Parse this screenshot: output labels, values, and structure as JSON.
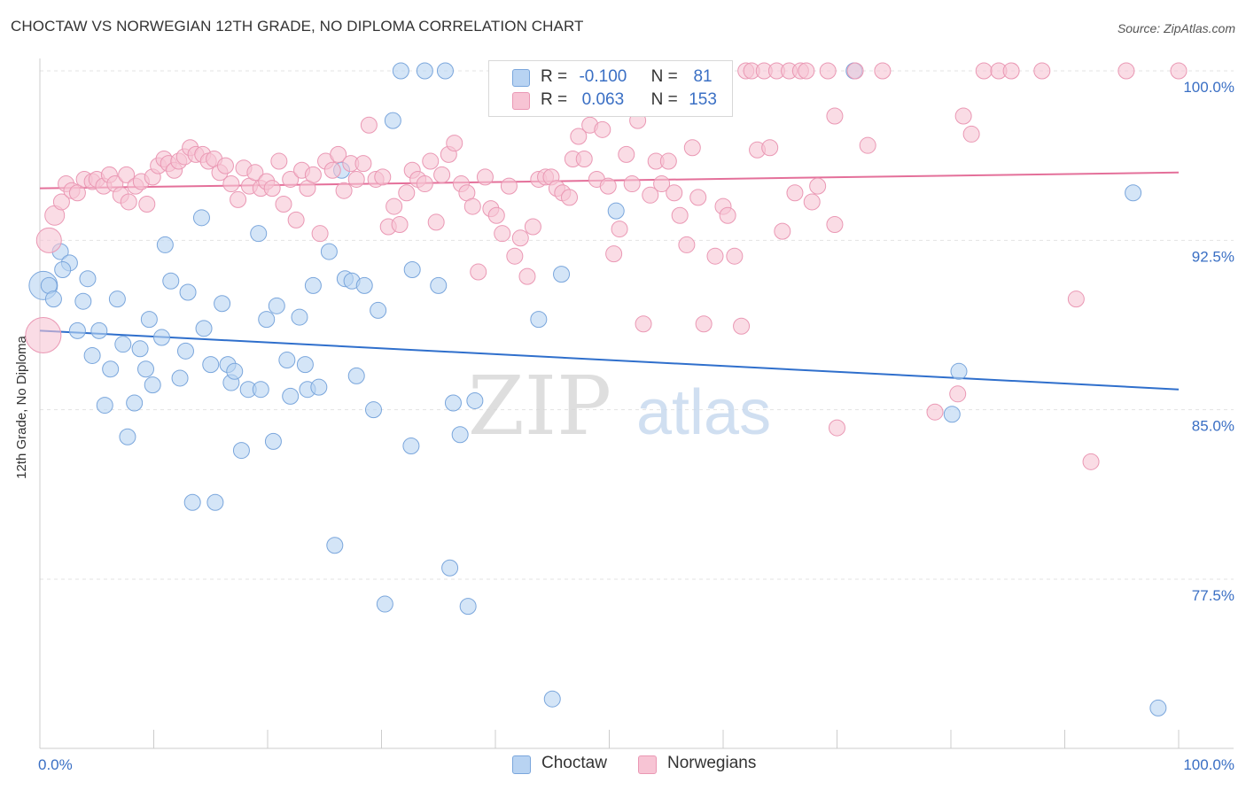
{
  "title": "CHOCTAW VS NORWEGIAN 12TH GRADE, NO DIPLOMA CORRELATION CHART",
  "source": "Source: ZipAtlas.com",
  "watermark": {
    "zip": "ZIP",
    "atlas": "atlas"
  },
  "legend": {
    "rows": [
      {
        "r_label": "R =",
        "r_value": "-0.100",
        "n_label": "N =",
        "n_value": "81"
      },
      {
        "r_label": "R =",
        "r_value": "0.063",
        "n_label": "N =",
        "n_value": "153"
      }
    ]
  },
  "colors": {
    "choctaw_fill": "#b8d3f2",
    "choctaw_stroke": "#7aa6dc",
    "choctaw_line": "#2f6fcc",
    "norwegian_fill": "#f7c4d4",
    "norwegian_stroke": "#ea98b4",
    "norwegian_line": "#e4709a",
    "axis_text": "#3a6fc4",
    "grid": "#e3e3e3"
  },
  "chart_data": {
    "type": "scatter",
    "title": "CHOCTAW VS NORWEGIAN 12TH GRADE, NO DIPLOMA CORRELATION CHART",
    "xlabel": "",
    "ylabel": "12th Grade, No Diploma",
    "xlim": [
      0,
      100
    ],
    "ylim": [
      71.5,
      101
    ],
    "x_tick_labels": [
      "0.0%",
      "100.0%"
    ],
    "y_ticks": [
      77.5,
      85.0,
      92.5,
      100.0
    ],
    "y_tick_labels": [
      "77.5%",
      "85.0%",
      "92.5%",
      "100.0%"
    ],
    "grid": true,
    "legend_position": "top-center",
    "series": [
      {
        "name": "Choctaw",
        "trend": {
          "x": [
            0,
            100
          ],
          "y": [
            88.5,
            85.9
          ]
        },
        "points": [
          [
            0.3,
            90.5,
            16
          ],
          [
            0.8,
            90.5,
            9
          ],
          [
            1.2,
            89.9,
            9
          ],
          [
            1.8,
            92.0,
            9
          ],
          [
            2.6,
            91.5,
            9
          ],
          [
            2.0,
            91.2,
            9
          ],
          [
            3.3,
            88.5,
            9
          ],
          [
            3.8,
            89.8,
            9
          ],
          [
            4.2,
            90.8,
            9
          ],
          [
            4.6,
            87.4,
            9
          ],
          [
            5.2,
            88.5,
            9
          ],
          [
            6.2,
            86.8,
            9
          ],
          [
            5.7,
            85.2,
            9
          ],
          [
            6.8,
            89.9,
            9
          ],
          [
            7.3,
            87.9,
            9
          ],
          [
            7.7,
            83.8,
            9
          ],
          [
            8.3,
            85.3,
            9
          ],
          [
            8.8,
            87.7,
            9
          ],
          [
            9.3,
            86.8,
            9
          ],
          [
            9.6,
            89.0,
            9
          ],
          [
            9.9,
            86.1,
            9
          ],
          [
            10.7,
            88.2,
            9
          ],
          [
            11.0,
            92.3,
            9
          ],
          [
            11.5,
            90.7,
            9
          ],
          [
            12.3,
            86.4,
            9
          ],
          [
            12.8,
            87.6,
            9
          ],
          [
            13.0,
            90.2,
            9
          ],
          [
            13.4,
            80.9,
            9
          ],
          [
            14.2,
            93.5,
            9
          ],
          [
            14.4,
            88.6,
            9
          ],
          [
            15.0,
            87.0,
            9
          ],
          [
            15.4,
            80.9,
            9
          ],
          [
            16.0,
            89.7,
            9
          ],
          [
            16.5,
            87.0,
            9
          ],
          [
            16.8,
            86.2,
            9
          ],
          [
            17.1,
            86.7,
            9
          ],
          [
            17.7,
            83.2,
            9
          ],
          [
            18.3,
            85.9,
            9
          ],
          [
            19.2,
            92.8,
            9
          ],
          [
            19.4,
            85.9,
            9
          ],
          [
            19.9,
            89.0,
            9
          ],
          [
            20.5,
            83.6,
            9
          ],
          [
            20.8,
            89.6,
            9
          ],
          [
            21.7,
            87.2,
            9
          ],
          [
            22.0,
            85.6,
            9
          ],
          [
            22.8,
            89.1,
            9
          ],
          [
            23.3,
            87.0,
            9
          ],
          [
            23.5,
            85.9,
            9
          ],
          [
            24.0,
            90.5,
            9
          ],
          [
            24.5,
            86.0,
            9
          ],
          [
            25.4,
            92.0,
            9
          ],
          [
            25.9,
            79.0,
            9
          ],
          [
            26.5,
            95.6,
            9
          ],
          [
            26.8,
            90.8,
            9
          ],
          [
            27.4,
            90.7,
            9
          ],
          [
            27.8,
            86.5,
            9
          ],
          [
            28.5,
            90.5,
            9
          ],
          [
            29.3,
            85.0,
            9
          ],
          [
            29.7,
            89.4,
            9
          ],
          [
            30.3,
            76.4,
            9
          ],
          [
            31.0,
            97.8,
            9
          ],
          [
            31.7,
            100.0,
            9
          ],
          [
            32.6,
            83.4,
            9
          ],
          [
            32.7,
            91.2,
            9
          ],
          [
            33.8,
            100.0,
            9
          ],
          [
            35.6,
            100.0,
            9
          ],
          [
            35.0,
            90.5,
            9
          ],
          [
            36.0,
            78.0,
            9
          ],
          [
            36.3,
            85.3,
            9
          ],
          [
            36.9,
            83.9,
            9
          ],
          [
            37.6,
            76.3,
            9
          ],
          [
            38.2,
            85.4,
            9
          ],
          [
            43.8,
            89.0,
            9
          ],
          [
            45.0,
            72.2,
            9
          ],
          [
            45.8,
            91.0,
            9
          ],
          [
            50.6,
            93.8,
            9
          ],
          [
            71.5,
            100.0,
            9
          ],
          [
            80.1,
            84.8,
            9
          ],
          [
            80.7,
            86.7,
            9
          ],
          [
            96.0,
            94.6,
            9
          ],
          [
            98.2,
            71.8,
            9
          ]
        ]
      },
      {
        "name": "Norwegians",
        "trend": {
          "x": [
            0,
            100
          ],
          "y": [
            94.8,
            95.5
          ]
        },
        "points": [
          [
            0.3,
            88.3,
            20
          ],
          [
            0.8,
            92.5,
            14
          ],
          [
            1.3,
            93.6,
            11
          ],
          [
            1.9,
            94.2,
            9
          ],
          [
            2.3,
            95.0,
            9
          ],
          [
            2.8,
            94.7,
            9
          ],
          [
            3.3,
            94.6,
            9
          ],
          [
            3.9,
            95.2,
            9
          ],
          [
            4.6,
            95.1,
            9
          ],
          [
            5.0,
            95.2,
            9
          ],
          [
            5.6,
            94.9,
            9
          ],
          [
            6.1,
            95.4,
            9
          ],
          [
            6.6,
            95.0,
            9
          ],
          [
            7.1,
            94.5,
            9
          ],
          [
            7.6,
            95.4,
            9
          ],
          [
            7.8,
            94.2,
            9
          ],
          [
            8.4,
            94.9,
            9
          ],
          [
            8.9,
            95.1,
            9
          ],
          [
            9.4,
            94.1,
            9
          ],
          [
            9.9,
            95.3,
            9
          ],
          [
            10.4,
            95.8,
            9
          ],
          [
            10.9,
            96.1,
            9
          ],
          [
            11.3,
            95.9,
            9
          ],
          [
            11.8,
            95.6,
            9
          ],
          [
            12.2,
            96.0,
            9
          ],
          [
            12.7,
            96.2,
            9
          ],
          [
            13.2,
            96.6,
            9
          ],
          [
            13.7,
            96.3,
            9
          ],
          [
            14.3,
            96.3,
            9
          ],
          [
            14.8,
            96.0,
            9
          ],
          [
            15.3,
            96.1,
            9
          ],
          [
            15.8,
            95.5,
            9
          ],
          [
            16.3,
            95.8,
            9
          ],
          [
            16.8,
            95.0,
            9
          ],
          [
            17.4,
            94.3,
            9
          ],
          [
            17.9,
            95.7,
            9
          ],
          [
            18.4,
            94.9,
            9
          ],
          [
            18.9,
            95.5,
            9
          ],
          [
            19.4,
            94.8,
            9
          ],
          [
            19.9,
            95.1,
            9
          ],
          [
            20.4,
            94.8,
            9
          ],
          [
            21.0,
            96.0,
            9
          ],
          [
            21.4,
            94.1,
            9
          ],
          [
            22.0,
            95.2,
            9
          ],
          [
            22.5,
            93.4,
            9
          ],
          [
            23.0,
            95.6,
            9
          ],
          [
            23.5,
            94.8,
            9
          ],
          [
            24.0,
            95.4,
            9
          ],
          [
            24.6,
            92.8,
            9
          ],
          [
            25.1,
            96.0,
            9
          ],
          [
            25.7,
            95.6,
            9
          ],
          [
            26.2,
            96.3,
            9
          ],
          [
            26.7,
            94.7,
            9
          ],
          [
            27.3,
            95.9,
            9
          ],
          [
            27.8,
            95.2,
            9
          ],
          [
            28.4,
            95.9,
            9
          ],
          [
            28.9,
            97.6,
            9
          ],
          [
            29.5,
            95.2,
            9
          ],
          [
            30.1,
            95.3,
            9
          ],
          [
            30.6,
            93.1,
            9
          ],
          [
            31.1,
            94.0,
            9
          ],
          [
            31.6,
            93.2,
            9
          ],
          [
            32.2,
            94.6,
            9
          ],
          [
            32.7,
            95.6,
            9
          ],
          [
            33.2,
            95.2,
            9
          ],
          [
            33.8,
            95.0,
            9
          ],
          [
            34.3,
            96.0,
            9
          ],
          [
            34.8,
            93.3,
            9
          ],
          [
            35.3,
            95.4,
            9
          ],
          [
            35.9,
            96.3,
            9
          ],
          [
            36.4,
            96.8,
            9
          ],
          [
            37.0,
            95.0,
            9
          ],
          [
            37.5,
            94.6,
            9
          ],
          [
            38.0,
            94.0,
            9
          ],
          [
            38.5,
            91.1,
            9
          ],
          [
            39.1,
            95.3,
            9
          ],
          [
            39.6,
            93.9,
            9
          ],
          [
            40.1,
            93.6,
            9
          ],
          [
            40.6,
            92.8,
            9
          ],
          [
            41.2,
            94.9,
            9
          ],
          [
            41.7,
            91.8,
            9
          ],
          [
            42.2,
            92.6,
            9
          ],
          [
            42.8,
            90.9,
            9
          ],
          [
            43.3,
            93.1,
            9
          ],
          [
            43.8,
            95.2,
            9
          ],
          [
            44.4,
            95.3,
            9
          ],
          [
            44.9,
            95.3,
            9
          ],
          [
            45.4,
            94.8,
            9
          ],
          [
            45.9,
            94.6,
            9
          ],
          [
            46.5,
            94.4,
            9
          ],
          [
            46.8,
            96.1,
            9
          ],
          [
            47.3,
            97.1,
            9
          ],
          [
            47.8,
            96.1,
            9
          ],
          [
            48.3,
            97.6,
            9
          ],
          [
            48.9,
            95.2,
            9
          ],
          [
            49.4,
            97.4,
            9
          ],
          [
            49.9,
            94.9,
            9
          ],
          [
            50.4,
            91.9,
            9
          ],
          [
            50.9,
            93.0,
            9
          ],
          [
            51.5,
            96.3,
            9
          ],
          [
            52.0,
            95.0,
            9
          ],
          [
            52.5,
            97.8,
            9
          ],
          [
            53.0,
            88.8,
            9
          ],
          [
            53.6,
            94.5,
            9
          ],
          [
            54.1,
            96.0,
            9
          ],
          [
            54.6,
            95.0,
            9
          ],
          [
            55.2,
            96.0,
            9
          ],
          [
            55.7,
            94.6,
            9
          ],
          [
            56.2,
            93.6,
            9
          ],
          [
            56.8,
            92.3,
            9
          ],
          [
            57.3,
            96.6,
            9
          ],
          [
            57.8,
            94.4,
            9
          ],
          [
            58.3,
            88.8,
            9
          ],
          [
            58.8,
            100.0,
            9
          ],
          [
            59.3,
            91.8,
            9
          ],
          [
            60.0,
            94.0,
            9
          ],
          [
            60.4,
            93.6,
            9
          ],
          [
            61.0,
            91.8,
            9
          ],
          [
            61.6,
            88.7,
            9
          ],
          [
            62.0,
            100.0,
            9
          ],
          [
            62.5,
            100.0,
            9
          ],
          [
            63.0,
            96.5,
            9
          ],
          [
            63.6,
            100.0,
            9
          ],
          [
            64.1,
            96.6,
            9
          ],
          [
            64.7,
            100.0,
            9
          ],
          [
            65.2,
            92.9,
            9
          ],
          [
            65.8,
            100.0,
            9
          ],
          [
            66.3,
            94.6,
            9
          ],
          [
            66.8,
            100.0,
            9
          ],
          [
            67.3,
            100.0,
            9
          ],
          [
            67.8,
            94.2,
            9
          ],
          [
            68.3,
            94.9,
            9
          ],
          [
            69.2,
            100.0,
            9
          ],
          [
            69.8,
            93.2,
            9
          ],
          [
            69.8,
            98.0,
            9
          ],
          [
            71.6,
            100.0,
            9
          ],
          [
            72.7,
            96.7,
            9
          ],
          [
            74.0,
            100.0,
            9
          ],
          [
            70.0,
            84.2,
            9
          ],
          [
            78.6,
            84.9,
            9
          ],
          [
            80.6,
            85.7,
            9
          ],
          [
            81.1,
            98.0,
            9
          ],
          [
            81.8,
            97.2,
            9
          ],
          [
            82.9,
            100.0,
            9
          ],
          [
            84.2,
            100.0,
            9
          ],
          [
            85.3,
            100.0,
            9
          ],
          [
            88.0,
            100.0,
            9
          ],
          [
            91.0,
            89.9,
            9
          ],
          [
            92.3,
            82.7,
            9
          ],
          [
            95.4,
            100.0,
            9
          ],
          [
            100.0,
            100.0,
            9
          ]
        ]
      }
    ]
  },
  "bottom_legend": {
    "items": [
      "Choctaw",
      "Norwegians"
    ]
  }
}
